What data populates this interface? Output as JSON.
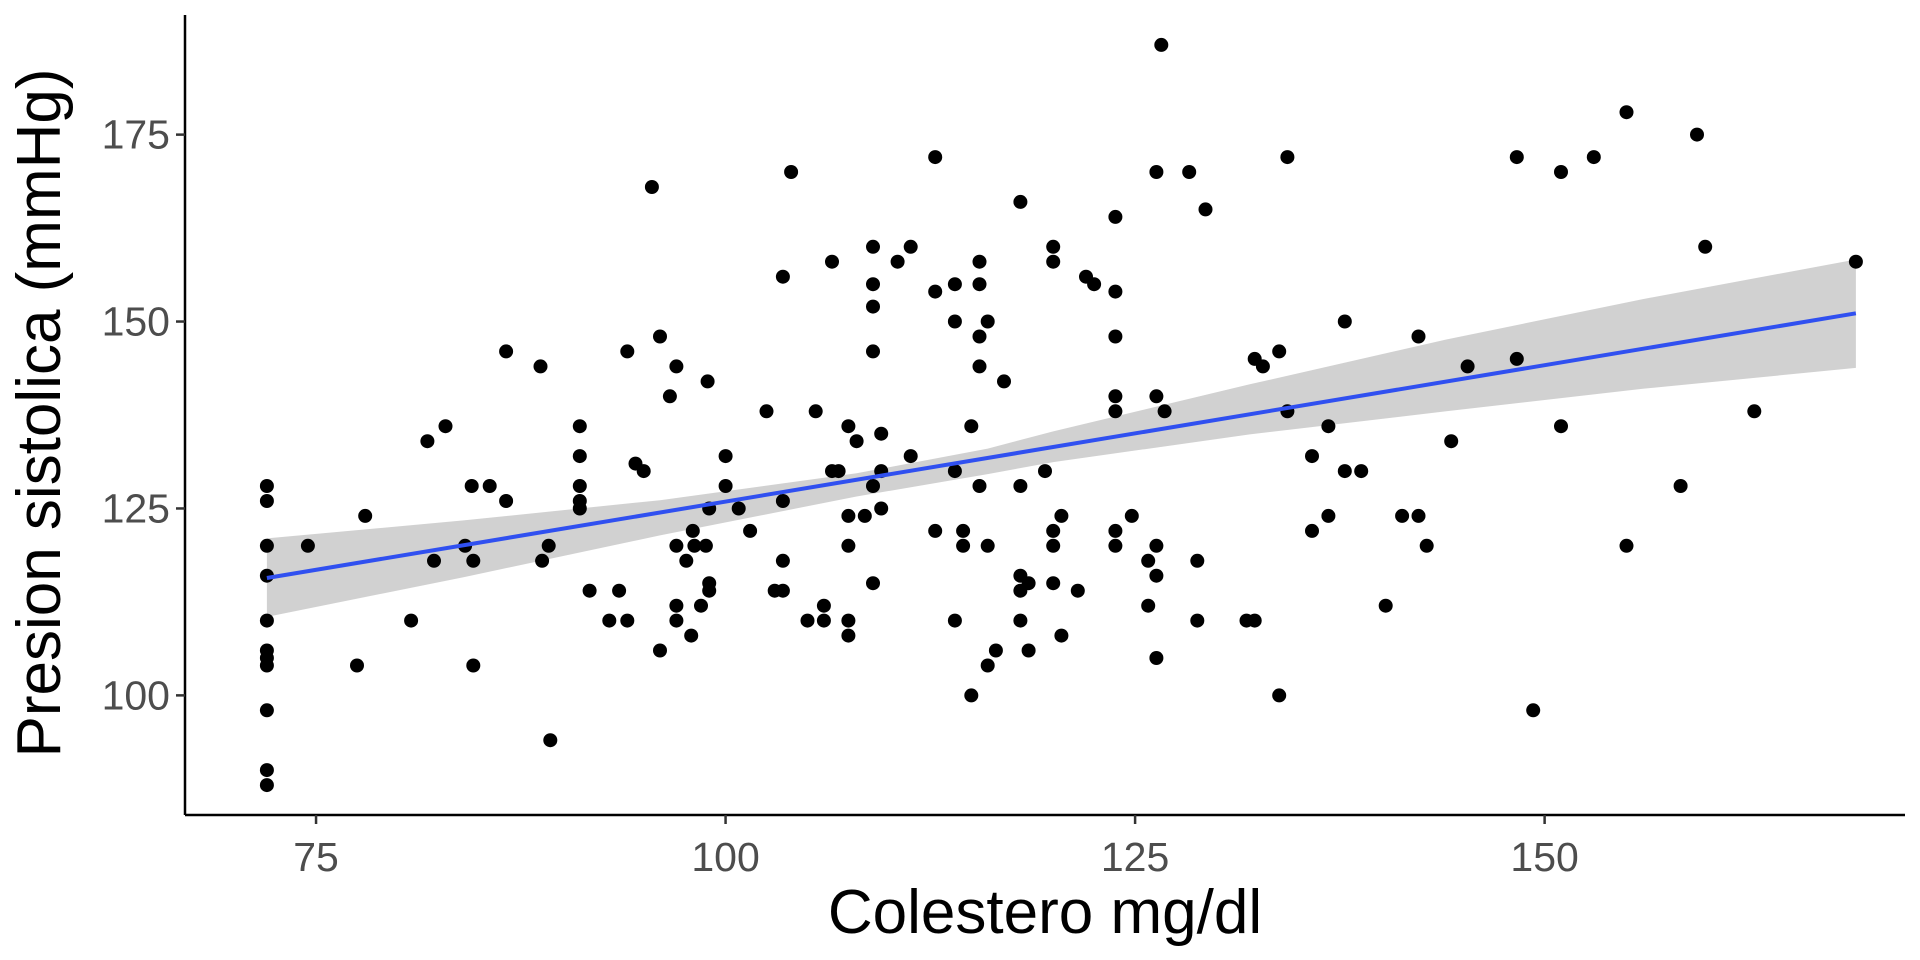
{
  "chart_data": {
    "type": "scatter",
    "xlabel": "Colestero mg/dl",
    "ylabel": "Presion sistolica (mmHg)",
    "xlim": [
      67,
      172
    ],
    "ylim": [
      84,
      191
    ],
    "x_ticks": [
      75,
      100,
      125,
      150
    ],
    "x_tick_labels": [
      "75",
      "100",
      "125",
      "150"
    ],
    "y_ticks": [
      100,
      125,
      150,
      175
    ],
    "y_tick_labels": [
      "100",
      "125",
      "150",
      "175"
    ],
    "grid": false,
    "colors": {
      "points": "#000000",
      "fit_line": "#3050F0",
      "confidence_band": "#CCCCCC"
    },
    "fit_line": {
      "method": "linear",
      "x_range": [
        72,
        169
      ],
      "y_start": 115.7,
      "y_end": 151.1
    },
    "confidence_band": {
      "x": [
        72,
        84,
        96,
        108,
        116,
        120,
        132,
        144,
        156,
        169
      ],
      "lower": [
        110.5,
        115.8,
        121.4,
        126.6,
        129.6,
        131.2,
        134.9,
        138.0,
        141.0,
        143.8
      ],
      "upper": [
        121.0,
        123.4,
        126.1,
        129.7,
        133.0,
        135.3,
        141.6,
        147.6,
        153.0,
        158.3
      ]
    },
    "points": [
      [
        72,
        88
      ],
      [
        72,
        90
      ],
      [
        72,
        98
      ],
      [
        72,
        104
      ],
      [
        72,
        105
      ],
      [
        72,
        106
      ],
      [
        72,
        110
      ],
      [
        72,
        116
      ],
      [
        72,
        120
      ],
      [
        72,
        126
      ],
      [
        72,
        128
      ],
      [
        74.5,
        120
      ],
      [
        78,
        124
      ],
      [
        77.5,
        104
      ],
      [
        80.8,
        110
      ],
      [
        81.8,
        134
      ],
      [
        82.2,
        118
      ],
      [
        82.9,
        136
      ],
      [
        84.1,
        120
      ],
      [
        84.5,
        128
      ],
      [
        84.6,
        118
      ],
      [
        84.6,
        104
      ],
      [
        85.6,
        128
      ],
      [
        86.6,
        146
      ],
      [
        86.6,
        126
      ],
      [
        88.7,
        144
      ],
      [
        88.8,
        118
      ],
      [
        89.2,
        120
      ],
      [
        89.3,
        94
      ],
      [
        91.1,
        136
      ],
      [
        91.1,
        132
      ],
      [
        91.1,
        128
      ],
      [
        91.1,
        126
      ],
      [
        91.1,
        125
      ],
      [
        91.7,
        114
      ],
      [
        92.9,
        110
      ],
      [
        93.5,
        114
      ],
      [
        94.0,
        146
      ],
      [
        94.0,
        110
      ],
      [
        94.5,
        131
      ],
      [
        95.0,
        130
      ],
      [
        95.5,
        168
      ],
      [
        96.0,
        148
      ],
      [
        96.0,
        106
      ],
      [
        96.6,
        140
      ],
      [
        97.0,
        144
      ],
      [
        97.0,
        120
      ],
      [
        97.0,
        112
      ],
      [
        97.0,
        110
      ],
      [
        97.6,
        118
      ],
      [
        97.9,
        108
      ],
      [
        98.0,
        122
      ],
      [
        98.1,
        120
      ],
      [
        98.5,
        112
      ],
      [
        98.8,
        120
      ],
      [
        98.9,
        142
      ],
      [
        99.0,
        125
      ],
      [
        99.0,
        115
      ],
      [
        99.0,
        114
      ],
      [
        100.0,
        132
      ],
      [
        100.0,
        128
      ],
      [
        100.8,
        125
      ],
      [
        101.5,
        122
      ],
      [
        102.5,
        138
      ],
      [
        103.0,
        114
      ],
      [
        103.5,
        156
      ],
      [
        103.5,
        126
      ],
      [
        103.5,
        118
      ],
      [
        103.5,
        114
      ],
      [
        104.0,
        170
      ],
      [
        105.0,
        110
      ],
      [
        105.5,
        138
      ],
      [
        106.0,
        112
      ],
      [
        106.0,
        110
      ],
      [
        106.5,
        158
      ],
      [
        106.5,
        130
      ],
      [
        106.9,
        130
      ],
      [
        107.5,
        136
      ],
      [
        107.5,
        124
      ],
      [
        107.5,
        120
      ],
      [
        107.5,
        110
      ],
      [
        107.5,
        108
      ],
      [
        108.0,
        134
      ],
      [
        108.5,
        124
      ],
      [
        109.0,
        160
      ],
      [
        109.0,
        155
      ],
      [
        109.0,
        152
      ],
      [
        109.0,
        146
      ],
      [
        109.0,
        128
      ],
      [
        109.0,
        115
      ],
      [
        109.5,
        135
      ],
      [
        109.5,
        130
      ],
      [
        109.5,
        125
      ],
      [
        110.5,
        158
      ],
      [
        111.3,
        160
      ],
      [
        111.3,
        132
      ],
      [
        112.8,
        172
      ],
      [
        112.8,
        154
      ],
      [
        112.8,
        122
      ],
      [
        114.0,
        155
      ],
      [
        114.0,
        150
      ],
      [
        114.0,
        130
      ],
      [
        114.0,
        110
      ],
      [
        114.5,
        122
      ],
      [
        114.5,
        120
      ],
      [
        115.0,
        136
      ],
      [
        115.0,
        100
      ],
      [
        115.5,
        158
      ],
      [
        115.5,
        155
      ],
      [
        115.5,
        148
      ],
      [
        115.5,
        144
      ],
      [
        115.5,
        128
      ],
      [
        116.0,
        150
      ],
      [
        116.0,
        120
      ],
      [
        116.0,
        104
      ],
      [
        116.5,
        106
      ],
      [
        117.0,
        142
      ],
      [
        118.0,
        166
      ],
      [
        118.0,
        128
      ],
      [
        118.0,
        116
      ],
      [
        118.0,
        114
      ],
      [
        118.0,
        110
      ],
      [
        118.5,
        115
      ],
      [
        118.5,
        106
      ],
      [
        119.5,
        130
      ],
      [
        120.0,
        160
      ],
      [
        120.0,
        158
      ],
      [
        120.0,
        122
      ],
      [
        120.0,
        120
      ],
      [
        120.0,
        115
      ],
      [
        120.5,
        124
      ],
      [
        120.5,
        108
      ],
      [
        121.5,
        114
      ],
      [
        122.0,
        156
      ],
      [
        122.5,
        155
      ],
      [
        123.8,
        164
      ],
      [
        123.8,
        154
      ],
      [
        123.8,
        148
      ],
      [
        123.8,
        140
      ],
      [
        123.8,
        138
      ],
      [
        123.8,
        122
      ],
      [
        123.8,
        120
      ],
      [
        124.8,
        124
      ],
      [
        125.8,
        118
      ],
      [
        125.8,
        112
      ],
      [
        126.3,
        170
      ],
      [
        126.3,
        140
      ],
      [
        126.3,
        120
      ],
      [
        126.3,
        116
      ],
      [
        126.3,
        105
      ],
      [
        126.6,
        187
      ],
      [
        126.8,
        138
      ],
      [
        128.3,
        170
      ],
      [
        128.8,
        118
      ],
      [
        128.8,
        110
      ],
      [
        129.3,
        165
      ],
      [
        131.8,
        110
      ],
      [
        132.3,
        145
      ],
      [
        132.3,
        110
      ],
      [
        132.8,
        144
      ],
      [
        133.8,
        146
      ],
      [
        133.8,
        100
      ],
      [
        134.3,
        172
      ],
      [
        134.3,
        138
      ],
      [
        135.8,
        132
      ],
      [
        135.8,
        122
      ],
      [
        136.8,
        136
      ],
      [
        136.8,
        124
      ],
      [
        137.8,
        150
      ],
      [
        137.8,
        130
      ],
      [
        138.8,
        130
      ],
      [
        140.3,
        112
      ],
      [
        141.3,
        124
      ],
      [
        142.3,
        148
      ],
      [
        142.3,
        124
      ],
      [
        142.8,
        120
      ],
      [
        144.3,
        134
      ],
      [
        145.3,
        144
      ],
      [
        148.3,
        172
      ],
      [
        148.3,
        145
      ],
      [
        149.3,
        98
      ],
      [
        151.0,
        170
      ],
      [
        151.0,
        136
      ],
      [
        153.0,
        172
      ],
      [
        155.0,
        178
      ],
      [
        155.0,
        120
      ],
      [
        158.3,
        128
      ],
      [
        159.3,
        175
      ],
      [
        159.8,
        160
      ],
      [
        162.8,
        138
      ],
      [
        169.0,
        158
      ]
    ]
  }
}
